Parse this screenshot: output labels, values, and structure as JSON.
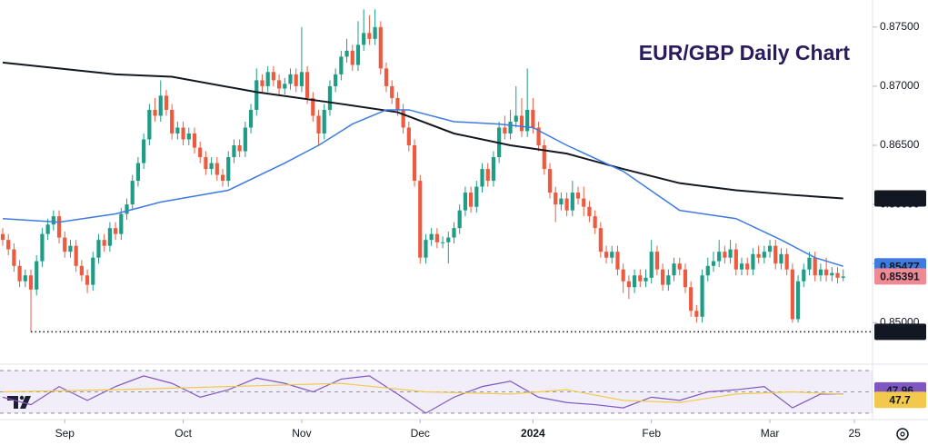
{
  "chart_data": [
    {
      "type": "candlestick",
      "title": "EUR/GBP Daily Chart",
      "up_color": "#1f9c86",
      "down_color": "#ec5b3f",
      "open": [
        0.8575,
        0.857,
        0.8562,
        0.8548,
        0.8535,
        0.854,
        0.8528,
        0.8552,
        0.8575,
        0.8583,
        0.859,
        0.8572,
        0.856,
        0.8565,
        0.8548,
        0.854,
        0.8532,
        0.8555,
        0.857,
        0.8565,
        0.858,
        0.8575,
        0.8592,
        0.86,
        0.862,
        0.8635,
        0.8655,
        0.868,
        0.8675,
        0.8692,
        0.868,
        0.866,
        0.8665,
        0.8655,
        0.866,
        0.8648,
        0.864,
        0.863,
        0.8635,
        0.8625,
        0.862,
        0.864,
        0.865,
        0.8645,
        0.8665,
        0.868,
        0.8705,
        0.87,
        0.8712,
        0.8705,
        0.8698,
        0.8702,
        0.871,
        0.87,
        0.8712,
        0.869,
        0.8675,
        0.866,
        0.868,
        0.87,
        0.871,
        0.8725,
        0.873,
        0.8718,
        0.8735,
        0.8745,
        0.874,
        0.875,
        0.8715,
        0.87,
        0.869,
        0.868,
        0.8665,
        0.865,
        0.862,
        0.8555,
        0.857,
        0.8575,
        0.8568,
        0.8568,
        0.8572,
        0.858,
        0.8595,
        0.861,
        0.8598,
        0.8615,
        0.863,
        0.862,
        0.864,
        0.8665,
        0.866,
        0.867,
        0.8675,
        0.8662,
        0.868,
        0.8665,
        0.865,
        0.863,
        0.861,
        0.86,
        0.8605,
        0.8595,
        0.861,
        0.8605,
        0.8598,
        0.859,
        0.858,
        0.856,
        0.8555,
        0.856,
        0.8545,
        0.8535,
        0.853,
        0.854,
        0.8535,
        0.8538,
        0.856,
        0.8545,
        0.8532,
        0.854,
        0.855,
        0.8545,
        0.853,
        0.851,
        0.8505,
        0.854,
        0.8548,
        0.8552,
        0.856,
        0.8555,
        0.8562,
        0.8545,
        0.855,
        0.8545,
        0.8558,
        0.8555,
        0.856,
        0.8565,
        0.855,
        0.8558,
        0.8545,
        0.8503,
        0.8535,
        0.8545,
        0.8555,
        0.854,
        0.8545,
        0.854,
        0.8542,
        0.8538
      ],
      "high": [
        0.858,
        0.8575,
        0.8567,
        0.8553,
        0.8545,
        0.8545,
        0.8557,
        0.858,
        0.8588,
        0.8595,
        0.8595,
        0.8577,
        0.857,
        0.857,
        0.8553,
        0.8545,
        0.856,
        0.8575,
        0.8575,
        0.8585,
        0.8585,
        0.8597,
        0.8605,
        0.8625,
        0.864,
        0.866,
        0.8685,
        0.869,
        0.8705,
        0.8697,
        0.8685,
        0.867,
        0.867,
        0.8665,
        0.8665,
        0.8653,
        0.8645,
        0.864,
        0.864,
        0.863,
        0.8645,
        0.8655,
        0.8655,
        0.867,
        0.8685,
        0.8715,
        0.871,
        0.8717,
        0.8717,
        0.871,
        0.8707,
        0.8715,
        0.8715,
        0.875,
        0.8717,
        0.8695,
        0.868,
        0.8685,
        0.8705,
        0.8715,
        0.873,
        0.874,
        0.8735,
        0.8755,
        0.8765,
        0.876,
        0.8765,
        0.8755,
        0.872,
        0.8705,
        0.8695,
        0.8685,
        0.867,
        0.8655,
        0.8625,
        0.8575,
        0.858,
        0.858,
        0.8573,
        0.8577,
        0.8585,
        0.86,
        0.8615,
        0.8615,
        0.862,
        0.8635,
        0.8635,
        0.8645,
        0.867,
        0.8675,
        0.868,
        0.87,
        0.869,
        0.8715,
        0.869,
        0.867,
        0.8655,
        0.8635,
        0.8615,
        0.861,
        0.861,
        0.862,
        0.8615,
        0.8615,
        0.8603,
        0.8595,
        0.8585,
        0.8565,
        0.8565,
        0.8565,
        0.855,
        0.854,
        0.8545,
        0.8545,
        0.8545,
        0.857,
        0.8565,
        0.855,
        0.8545,
        0.8555,
        0.8555,
        0.855,
        0.8535,
        0.8515,
        0.8545,
        0.8555,
        0.856,
        0.857,
        0.8565,
        0.857,
        0.8567,
        0.8555,
        0.8555,
        0.8563,
        0.8565,
        0.8565,
        0.857,
        0.857,
        0.8563,
        0.8563,
        0.855,
        0.854,
        0.855,
        0.856,
        0.856,
        0.855,
        0.8555,
        0.8547,
        0.8547,
        0.8545
      ],
      "low": [
        0.8565,
        0.8557,
        0.8543,
        0.853,
        0.853,
        0.84923,
        0.8523,
        0.8547,
        0.857,
        0.8578,
        0.8567,
        0.8555,
        0.8555,
        0.8543,
        0.8535,
        0.8525,
        0.8527,
        0.855,
        0.856,
        0.856,
        0.857,
        0.857,
        0.8587,
        0.8595,
        0.8615,
        0.863,
        0.865,
        0.867,
        0.867,
        0.8675,
        0.8655,
        0.8655,
        0.865,
        0.865,
        0.8643,
        0.8635,
        0.8625,
        0.8625,
        0.862,
        0.8615,
        0.8615,
        0.8635,
        0.864,
        0.864,
        0.866,
        0.8675,
        0.8695,
        0.8695,
        0.87,
        0.8693,
        0.8693,
        0.8697,
        0.8695,
        0.8695,
        0.8685,
        0.867,
        0.865,
        0.8655,
        0.8675,
        0.8695,
        0.8705,
        0.872,
        0.8713,
        0.8713,
        0.873,
        0.8735,
        0.8735,
        0.871,
        0.8695,
        0.8685,
        0.8675,
        0.866,
        0.8645,
        0.8615,
        0.855,
        0.855,
        0.8565,
        0.8563,
        0.8563,
        0.855,
        0.8567,
        0.8575,
        0.859,
        0.8593,
        0.8593,
        0.861,
        0.8615,
        0.8615,
        0.8635,
        0.8655,
        0.8655,
        0.8665,
        0.8657,
        0.8657,
        0.866,
        0.8645,
        0.8625,
        0.8605,
        0.8585,
        0.8595,
        0.859,
        0.859,
        0.86,
        0.859,
        0.8585,
        0.8575,
        0.8555,
        0.855,
        0.855,
        0.854,
        0.8525,
        0.852,
        0.8525,
        0.853,
        0.853,
        0.8533,
        0.854,
        0.8527,
        0.8527,
        0.8535,
        0.854,
        0.8525,
        0.8505,
        0.85,
        0.85,
        0.8535,
        0.8543,
        0.8547,
        0.855,
        0.855,
        0.854,
        0.854,
        0.854,
        0.854,
        0.855,
        0.855,
        0.8555,
        0.8545,
        0.8545,
        0.854,
        0.85,
        0.85,
        0.853,
        0.854,
        0.8535,
        0.8535,
        0.8535,
        0.8535,
        0.8533,
        0.8535
      ],
      "close": [
        0.857,
        0.8562,
        0.8548,
        0.8535,
        0.854,
        0.8528,
        0.8552,
        0.8575,
        0.8583,
        0.859,
        0.8572,
        0.856,
        0.8565,
        0.8548,
        0.854,
        0.8532,
        0.8555,
        0.857,
        0.8565,
        0.858,
        0.8575,
        0.8592,
        0.86,
        0.862,
        0.8635,
        0.8655,
        0.868,
        0.8675,
        0.8692,
        0.868,
        0.866,
        0.8665,
        0.8655,
        0.866,
        0.8648,
        0.864,
        0.863,
        0.8635,
        0.8625,
        0.862,
        0.864,
        0.865,
        0.8645,
        0.8665,
        0.868,
        0.8705,
        0.87,
        0.8712,
        0.8705,
        0.8698,
        0.8702,
        0.871,
        0.87,
        0.8712,
        0.869,
        0.8675,
        0.866,
        0.868,
        0.87,
        0.871,
        0.8725,
        0.873,
        0.8718,
        0.8735,
        0.8745,
        0.874,
        0.875,
        0.8715,
        0.87,
        0.869,
        0.868,
        0.8665,
        0.865,
        0.862,
        0.8555,
        0.857,
        0.8575,
        0.8568,
        0.8568,
        0.8572,
        0.858,
        0.8595,
        0.861,
        0.8598,
        0.8615,
        0.863,
        0.862,
        0.864,
        0.8665,
        0.866,
        0.867,
        0.8675,
        0.8662,
        0.868,
        0.8665,
        0.865,
        0.863,
        0.861,
        0.86,
        0.8605,
        0.8595,
        0.861,
        0.8605,
        0.8598,
        0.859,
        0.858,
        0.856,
        0.8555,
        0.856,
        0.8545,
        0.8535,
        0.853,
        0.854,
        0.8535,
        0.8538,
        0.856,
        0.8545,
        0.8532,
        0.854,
        0.855,
        0.8545,
        0.853,
        0.851,
        0.8505,
        0.854,
        0.8548,
        0.8552,
        0.856,
        0.8555,
        0.8562,
        0.8545,
        0.855,
        0.8545,
        0.8558,
        0.8555,
        0.856,
        0.8565,
        0.855,
        0.8558,
        0.8545,
        0.8503,
        0.8535,
        0.8545,
        0.8555,
        0.854,
        0.8545,
        0.854,
        0.8542,
        0.8538,
        0.85391
      ],
      "series": [
        {
          "color": "#131722",
          "tag_text_color": "#ffffff",
          "x": [
            0,
            20,
            30,
            45,
            60,
            70,
            80,
            90,
            100,
            110,
            120,
            130,
            140,
            149
          ],
          "values": [
            0.872,
            0.871,
            0.8708,
            0.8695,
            0.8685,
            0.8678,
            0.866,
            0.865,
            0.8643,
            0.863,
            0.8618,
            0.8612,
            0.8608,
            0.86051
          ]
        },
        {
          "color": "#3d7be0",
          "tag_text_color": "#ffffff",
          "x": [
            0,
            10,
            20,
            28,
            40,
            50,
            56,
            62,
            68,
            72,
            80,
            88,
            94,
            100,
            110,
            120,
            130,
            138,
            144,
            149
          ],
          "values": [
            0.8588,
            0.8585,
            0.8592,
            0.8602,
            0.8612,
            0.8635,
            0.865,
            0.8668,
            0.868,
            0.868,
            0.867,
            0.8668,
            0.8665,
            0.865,
            0.8628,
            0.8595,
            0.8588,
            0.857,
            0.8555,
            0.85477
          ]
        }
      ],
      "last_tag_color": "#ef8a95",
      "low_marker_color": "#131722",
      "xlim": [
        -0.48,
        154.2
      ],
      "ylim": [
        0.84672,
        0.87729
      ],
      "yticks": [
        {
          "value": 0.85,
          "label": "0.85000"
        },
        {
          "value": 0.855,
          "label": "0.85500"
        },
        {
          "value": 0.86,
          "label": "0.86000"
        },
        {
          "value": 0.865,
          "label": "0.86500"
        },
        {
          "value": 0.87,
          "label": "0.87000"
        },
        {
          "value": 0.875,
          "label": "0.87500"
        }
      ]
    },
    {
      "type": "line",
      "xlim": [
        -0.48,
        154.2
      ],
      "ylim": [
        25.7,
        72.6
      ],
      "levels": [
        70,
        50,
        30
      ],
      "band_color": "#7e57c2",
      "series": [
        {
          "color": "#7e57c2",
          "tag_text_color": "#ffffff",
          "x": [
            0,
            5,
            10,
            15,
            20,
            25,
            30,
            35,
            40,
            45,
            50,
            55,
            60,
            65,
            70,
            75,
            80,
            85,
            90,
            95,
            100,
            105,
            110,
            115,
            120,
            125,
            130,
            135,
            140,
            145,
            149
          ],
          "values": [
            45,
            38,
            55,
            42,
            55,
            65,
            58,
            45,
            52,
            63,
            58,
            50,
            62,
            65,
            48,
            30,
            45,
            55,
            60,
            45,
            40,
            38,
            35,
            45,
            42,
            50,
            52,
            55,
            35,
            48,
            47.96
          ]
        },
        {
          "color": "#f2c94c",
          "tag_text_color": "#131722",
          "x": [
            0,
            20,
            40,
            60,
            75,
            90,
            100,
            110,
            120,
            130,
            140,
            149
          ],
          "values": [
            50,
            52,
            55,
            58,
            50,
            48,
            52,
            42,
            40,
            48,
            50,
            47.7
          ]
        }
      ],
      "xticks": [
        {
          "value": 11,
          "label": "Sep"
        },
        {
          "value": 32,
          "label": "Oct"
        },
        {
          "value": 53,
          "label": "Nov"
        },
        {
          "value": 74,
          "label": "Dec"
        },
        {
          "value": 94,
          "label": "2024"
        },
        {
          "value": 115,
          "label": "Feb"
        },
        {
          "value": 136,
          "label": "Mar"
        },
        {
          "value": 151,
          "label": "25"
        }
      ]
    }
  ]
}
